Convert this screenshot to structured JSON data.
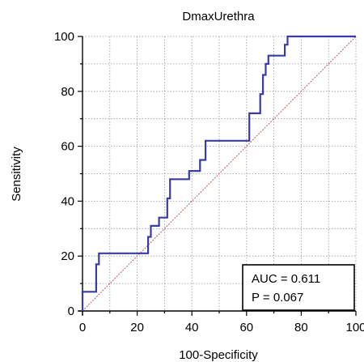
{
  "chart_data": {
    "type": "line",
    "title": "DmaxUrethra",
    "xlabel": "100-Specificity",
    "ylabel": "Sensitivity",
    "xlim": [
      0,
      100
    ],
    "ylim": [
      0,
      100
    ],
    "xticks": [
      "0",
      "20",
      "40",
      "60",
      "80",
      "100"
    ],
    "yticks": [
      "0",
      "20",
      "40",
      "60",
      "80",
      "100"
    ],
    "grid": true,
    "series": [
      {
        "x": [
          0,
          0,
          5,
          5,
          6,
          6,
          7,
          7,
          23,
          24,
          24,
          25,
          25,
          28,
          28,
          31,
          31,
          32,
          32,
          39,
          39,
          43,
          43,
          45,
          45,
          61,
          61,
          65,
          65,
          66,
          66,
          67,
          67,
          68,
          68,
          71,
          71,
          74,
          74,
          75,
          75,
          100
        ],
        "y": [
          0,
          7,
          7,
          17,
          17,
          21,
          21,
          21,
          21,
          21,
          27,
          27,
          31,
          31,
          34,
          34,
          41,
          41,
          48,
          48,
          51,
          51,
          55,
          55,
          62,
          62,
          72,
          72,
          79,
          79,
          86,
          86,
          90,
          90,
          93,
          93,
          93,
          93,
          97,
          97,
          100,
          100
        ],
        "color": "#3b3ba8"
      }
    ],
    "reference_line": {
      "x": [
        0,
        100
      ],
      "y": [
        0,
        100
      ],
      "color": "#b04a4a"
    },
    "annotation": {
      "auc": "AUC = 0.611",
      "p": "P = 0.067"
    }
  }
}
